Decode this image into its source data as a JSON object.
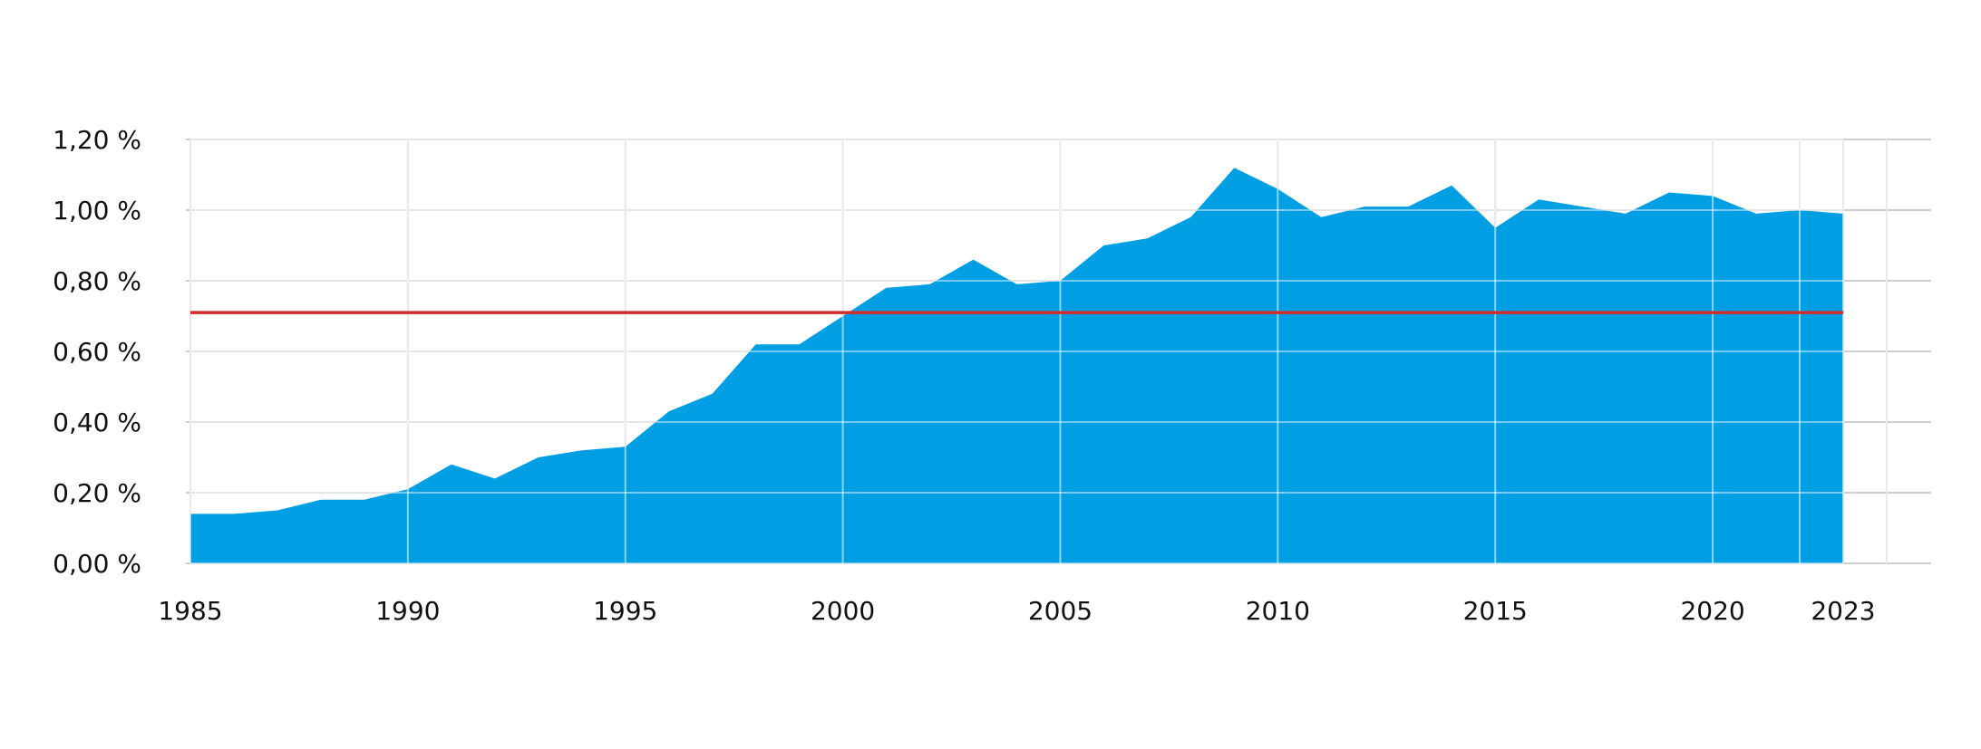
{
  "chart_data": {
    "type": "area",
    "title": "",
    "xlabel": "",
    "ylabel": "",
    "x_ticks": [
      "1985",
      "1990",
      "1995",
      "2000",
      "2005",
      "2010",
      "2015",
      "2020",
      "2023"
    ],
    "y_ticks": [
      "0,00 %",
      "0,20 %",
      "0,40 %",
      "0,60 %",
      "0,80 %",
      "1,00 %",
      "1,20 %"
    ],
    "xlim": [
      1985,
      2024
    ],
    "ylim": [
      0,
      1.2
    ],
    "grid": true,
    "x": [
      1985,
      1986,
      1987,
      1988,
      1989,
      1990,
      1991,
      1992,
      1993,
      1994,
      1995,
      1996,
      1997,
      1998,
      1999,
      2000,
      2001,
      2002,
      2003,
      2004,
      2005,
      2006,
      2007,
      2008,
      2009,
      2010,
      2011,
      2012,
      2013,
      2014,
      2015,
      2016,
      2017,
      2018,
      2019,
      2020,
      2021,
      2022,
      2023
    ],
    "series": [
      {
        "type": "area",
        "color": "#009fe3",
        "values": [
          0.14,
          0.14,
          0.15,
          0.18,
          0.18,
          0.21,
          0.28,
          0.24,
          0.3,
          0.32,
          0.33,
          0.43,
          0.48,
          0.62,
          0.62,
          0.7,
          0.78,
          0.79,
          0.86,
          0.79,
          0.8,
          0.9,
          0.92,
          0.98,
          1.12,
          1.06,
          0.98,
          1.01,
          1.01,
          1.07,
          0.95,
          1.03,
          1.01,
          0.99,
          1.05,
          1.04,
          0.99,
          1.0,
          0.99
        ]
      },
      {
        "type": "line",
        "color": "#d22d2d",
        "values": [
          0.71,
          0.71,
          0.71,
          0.71,
          0.71,
          0.71,
          0.71,
          0.71,
          0.71,
          0.71,
          0.71,
          0.71,
          0.71,
          0.71,
          0.71,
          0.71,
          0.71,
          0.71,
          0.71,
          0.71,
          0.71,
          0.71,
          0.71,
          0.71,
          0.71,
          0.71,
          0.71,
          0.71,
          0.71,
          0.71,
          0.71,
          0.71,
          0.71,
          0.71,
          0.71,
          0.71,
          0.71,
          0.71,
          0.71
        ]
      }
    ],
    "colors": {
      "grid": "#cfcfcf",
      "text": "#111111"
    }
  }
}
